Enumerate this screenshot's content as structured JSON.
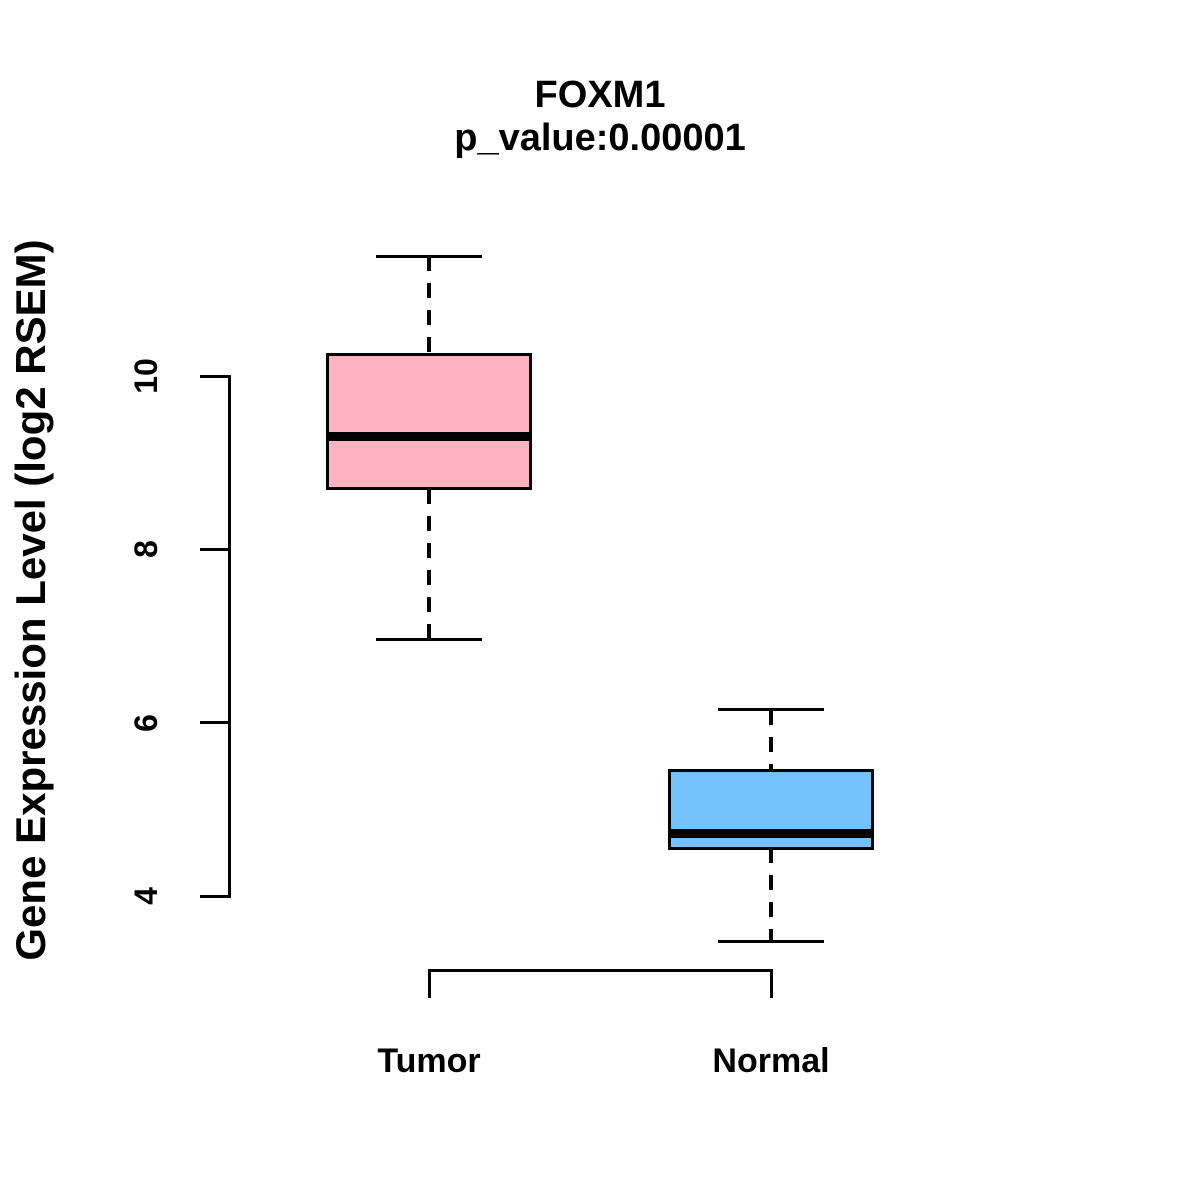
{
  "figure": {
    "title": "FOXM1",
    "subtitle": "p_value:0.00001",
    "ylabel": "Gene Expression Level (log2 RSEM)"
  },
  "chart_data": {
    "type": "boxplot",
    "title": "FOXM1",
    "subtitle": "p_value:0.00001",
    "ylabel": "Gene Expression Level (log2 RSEM)",
    "xlabel": "",
    "categories": [
      "Tumor",
      "Normal"
    ],
    "yticks": [
      4,
      6,
      8,
      10
    ],
    "ylim": [
      3.2,
      11.7
    ],
    "grid": false,
    "legend": "none",
    "series": [
      {
        "name": "Tumor",
        "color": "#FFB3C1",
        "min": 6.96,
        "q1": 8.7,
        "median": 9.3,
        "q3": 10.25,
        "max": 11.38
      },
      {
        "name": "Normal",
        "color": "#74C1FB",
        "min": 3.47,
        "q1": 4.55,
        "median": 4.72,
        "q3": 5.45,
        "max": 6.15
      }
    ],
    "annotations": [
      {
        "type": "comparison-bracket",
        "from": "Tumor",
        "to": "Normal"
      }
    ]
  }
}
